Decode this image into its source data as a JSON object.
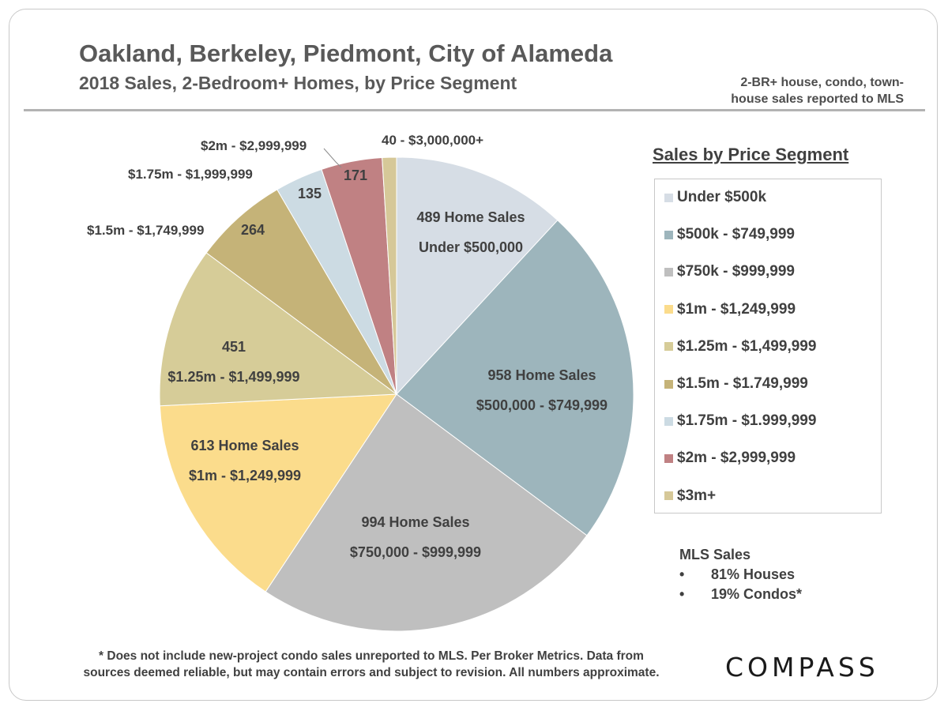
{
  "header": {
    "title": "Oakland, Berkeley, Piedmont, City of Alameda",
    "subtitle": "2018 Sales, 2-Bedroom+ Homes, by Price Segment",
    "note_line1": "2-BR+ house, condo, town-",
    "note_line2": "house sales reported to MLS"
  },
  "chart_data": {
    "type": "pie",
    "start_angle": "12 o'clock",
    "direction": "clockwise",
    "slices": [
      {
        "label": "Under $500k",
        "value": 489,
        "color": "#d6dde5",
        "text_lines": [
          "489  Home  Sales",
          "Under $500,000"
        ]
      },
      {
        "label": "$500k - $749,999",
        "value": 958,
        "color": "#9db5bc",
        "text_lines": [
          "958  Home  Sales",
          "$500,000 - $749,999"
        ]
      },
      {
        "label": "$750k - $999,999",
        "value": 994,
        "color": "#bfbfbf",
        "text_lines": [
          "994  Home  Sales",
          "$750,000 - $999,999"
        ]
      },
      {
        "label": "$1m  - $1,249,999",
        "value": 613,
        "color": "#fbdc8c",
        "text_lines": [
          "613  Home  Sales",
          "$1m - $1,249,999"
        ]
      },
      {
        "label": "$1.25m  - $1,499,999",
        "value": 451,
        "color": "#d6cc98",
        "text_lines": [
          "451",
          "$1.25m - $1,499,999"
        ]
      },
      {
        "label": "$1.5m  - $1.749,999",
        "value": 264,
        "color": "#c5b378",
        "text_lines": [
          "264"
        ],
        "outer_label": "$1.5m - $1,749,999"
      },
      {
        "label": "$1.75m  - $1.999,999",
        "value": 135,
        "color": "#ccdbe3",
        "text_lines": [
          "135"
        ],
        "outer_label": "$1.75m - $1,999,999"
      },
      {
        "label": "$2m  - $2,999,999",
        "value": 171,
        "color": "#c08183",
        "text_lines": [
          "171"
        ],
        "outer_label": "$2m - $2,999,999"
      },
      {
        "label": "$3m+",
        "value": 40,
        "color": "#d6c898",
        "text_lines": [],
        "outer_label": "40 - $3,000,000+"
      }
    ]
  },
  "legend": {
    "title": "Sales by Price Segment",
    "items": [
      {
        "label": "Under $500k",
        "color": "#d6dde5"
      },
      {
        "label": "$500k - $749,999",
        "color": "#9db5bc"
      },
      {
        "label": "$750k - $999,999",
        "color": "#bfbfbf"
      },
      {
        "label": "$1m  - $1,249,999",
        "color": "#fbdc8c"
      },
      {
        "label": "$1.25m  - $1,499,999",
        "color": "#d6cc98"
      },
      {
        "label": "$1.5m  - $1.749,999",
        "color": "#c5b378"
      },
      {
        "label": "$1.75m  - $1.999,999",
        "color": "#ccdbe3"
      },
      {
        "label": "$2m  - $2,999,999",
        "color": "#c08183"
      },
      {
        "label": "$3m+",
        "color": "#d6c898"
      }
    ]
  },
  "mls": {
    "title": "MLS  Sales",
    "items": [
      {
        "bullet": "•",
        "text": "81% Houses"
      },
      {
        "bullet": "•",
        "text": "19% Condos*"
      }
    ]
  },
  "footnote": {
    "line1": "* Does not include new-project condo sales unreported to MLS. Per Broker Metrics. Data from",
    "line2": "sources deemed reliable, but may contain errors and subject to revision. All numbers approximate."
  },
  "brand": {
    "logo_text": "COMPASS"
  }
}
